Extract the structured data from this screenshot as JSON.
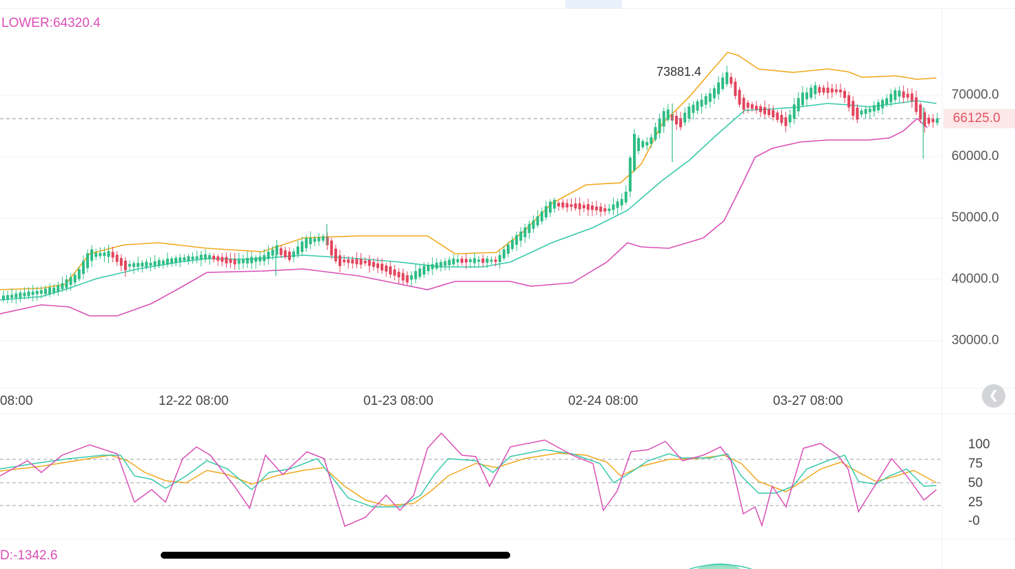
{
  "indicators": {
    "boll_lower_text": "LOWER:64320.4",
    "macd_text": "D:-1342.6"
  },
  "chart": {
    "high_label": "73881.4",
    "current_price": "66125.0",
    "price_axis": [
      "70000.0",
      "60000.0",
      "50000.0",
      "40000.0",
      "30000.0"
    ],
    "date_axis": [
      "08:00",
      "12-22 08:00",
      "01-23 08:00",
      "02-24 08:00",
      "03-27 08:00"
    ],
    "kdj_axis": [
      "100",
      "75",
      "50",
      "25",
      "-0"
    ]
  },
  "controls": {
    "reset_icon": "double-chevron-left-icon",
    "reset_glyph": "❮"
  },
  "colors": {
    "up": "#2ebd85",
    "down": "#e2445c",
    "boll_upper": "#f0a81c",
    "boll_mid": "#36c9aa",
    "boll_lower": "#d94fb6",
    "current_price": "#e45462"
  }
}
